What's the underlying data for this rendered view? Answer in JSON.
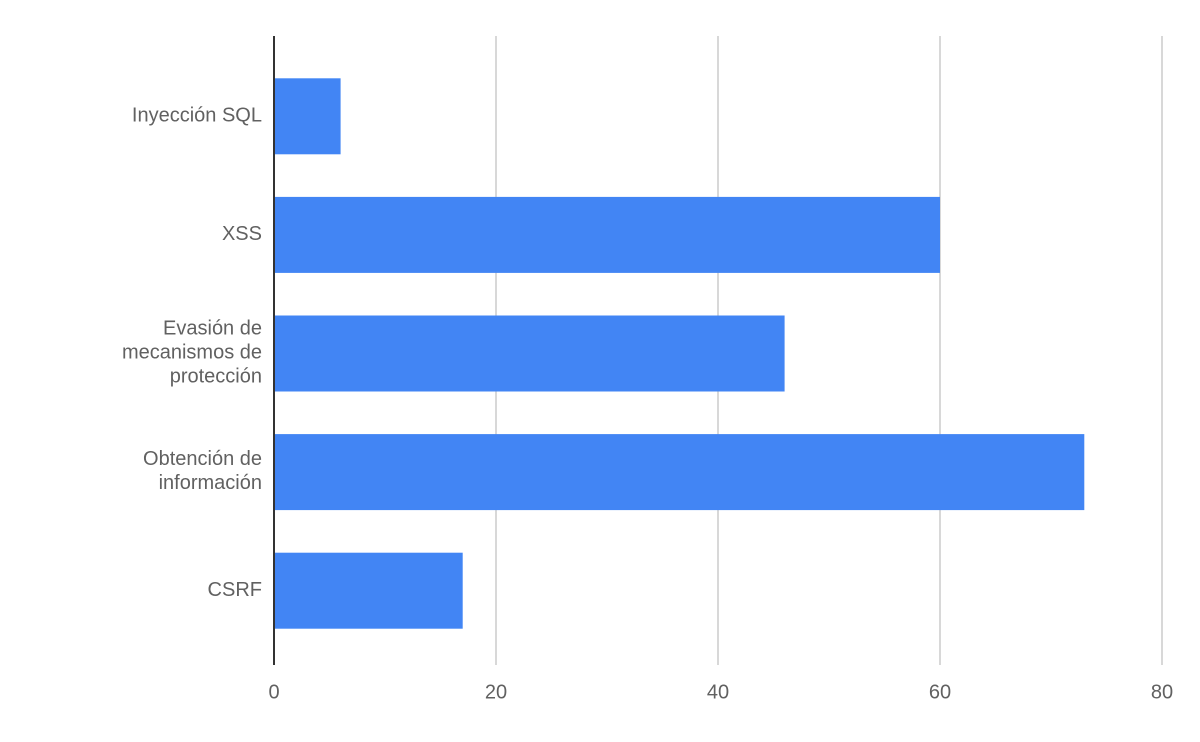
{
  "chart_data": {
    "type": "bar",
    "orientation": "horizontal",
    "categories": [
      "Inyección SQL",
      "XSS",
      "Evasión de\nmecanismos de\nprotección",
      "Obtención de\ninformación",
      "CSRF"
    ],
    "values": [
      6,
      60,
      46,
      73,
      17
    ],
    "color": "#4285f4",
    "xlim": [
      0,
      80
    ],
    "xticks": [
      0,
      20,
      40,
      60,
      80
    ],
    "grid": true
  }
}
